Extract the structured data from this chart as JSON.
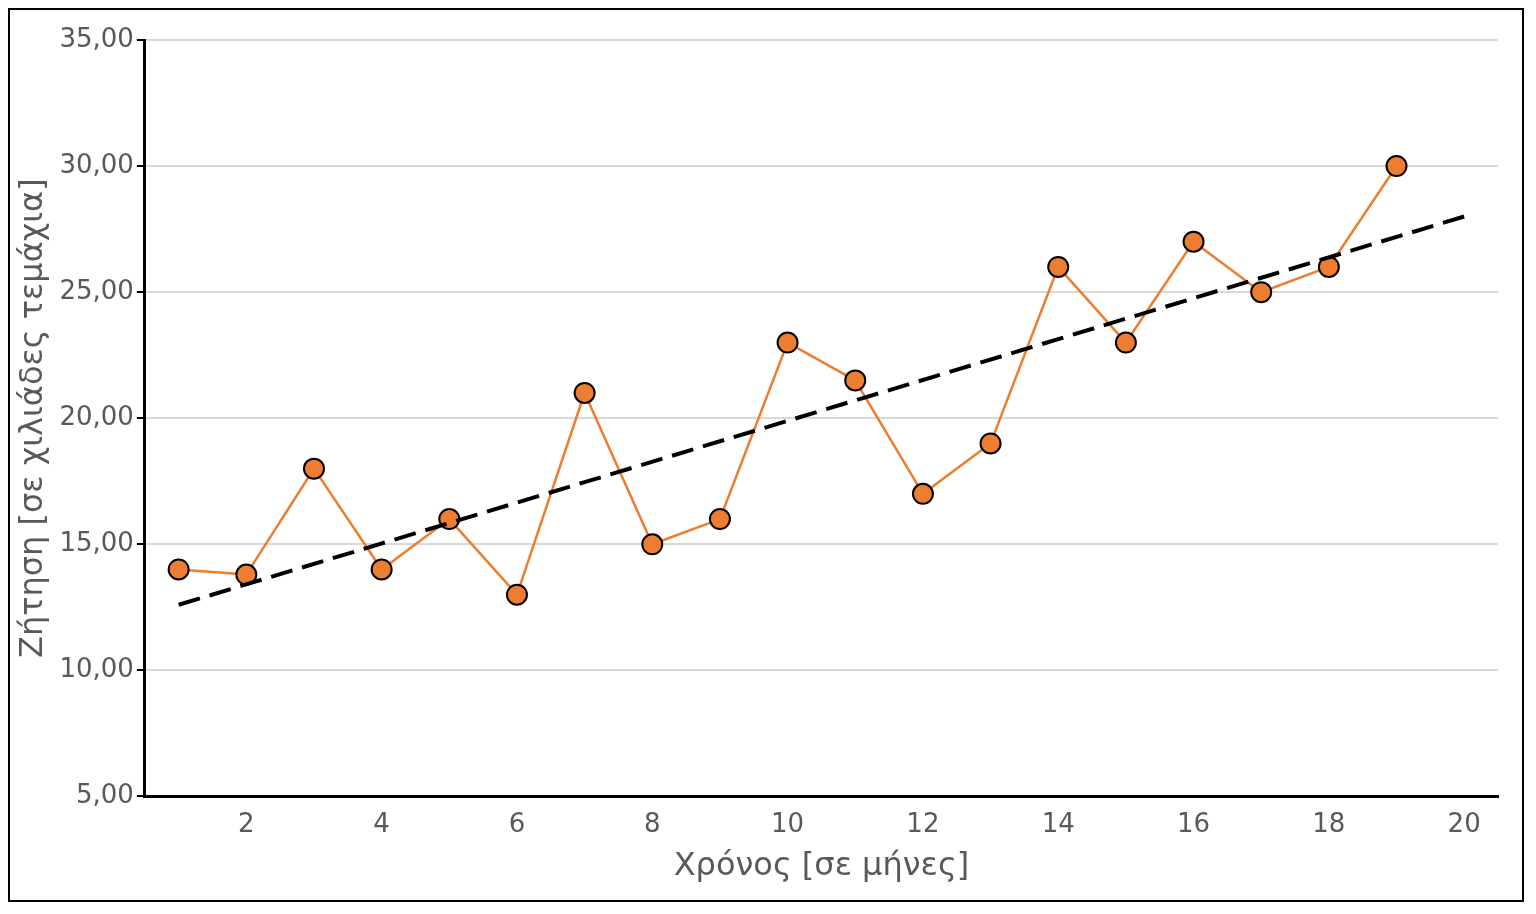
{
  "chart_data": {
    "type": "line",
    "xlabel": "Χρόνος [σε μήνες]",
    "ylabel": "Ζήτηση [σε χιλιάδες τεμάχια]",
    "x": [
      1,
      2,
      3,
      4,
      5,
      6,
      7,
      8,
      9,
      10,
      11,
      12,
      13,
      14,
      15,
      16,
      17,
      18,
      19
    ],
    "series": [
      {
        "color": "#ed7d31",
        "marker": "circle",
        "line_style": "solid",
        "values": [
          14,
          13.8,
          18,
          14,
          16,
          13,
          21,
          15,
          16,
          23,
          21.5,
          17,
          19,
          26,
          23,
          27,
          25,
          26,
          30
        ]
      },
      {
        "type": "line",
        "color": "#000000",
        "marker": "none",
        "line_style": "dashed",
        "x": [
          1,
          20
        ],
        "values": [
          12.6,
          28
        ]
      }
    ],
    "xlim": [
      0.5,
      20.5
    ],
    "xticks": [
      2,
      4,
      6,
      8,
      10,
      12,
      14,
      16,
      18,
      20
    ],
    "ylim": [
      5,
      35
    ],
    "yticks": [
      {
        "value": 5,
        "label": "5,00"
      },
      {
        "value": 10,
        "label": "10,00"
      },
      {
        "value": 15,
        "label": "15,00"
      },
      {
        "value": 20,
        "label": "20,00"
      },
      {
        "value": 25,
        "label": "25,00"
      },
      {
        "value": 30,
        "label": "30,00"
      },
      {
        "value": 35,
        "label": "35,00"
      }
    ],
    "grid": "y",
    "legend": false
  }
}
